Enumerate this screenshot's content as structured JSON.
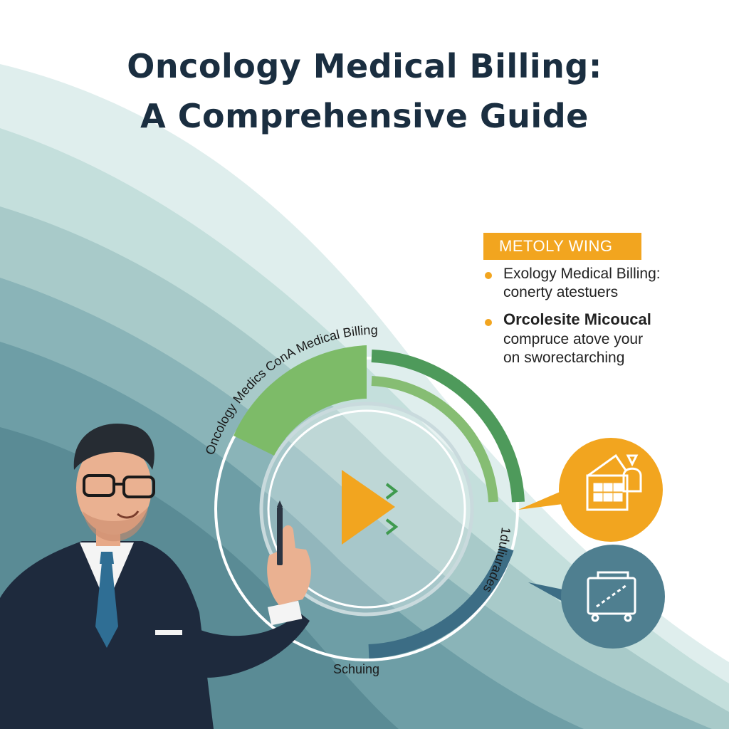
{
  "title": {
    "line1": "Oncology Medical Billing:",
    "line2": "A Comprehensive Guide"
  },
  "badge": {
    "label": "METOLY WING"
  },
  "bullets": [
    {
      "line1": "Exology Medical Billing:",
      "line2": "conerty atestuers"
    },
    {
      "heading": "Orcolesite Micoucal",
      "line1": "compruce atove your",
      "line2": "on sworectarching"
    }
  ],
  "diagram": {
    "arc_top_label": "Oncology Medics ConA Medical Billing",
    "arc_right_label": "1duliurades",
    "arc_bottom_label": "Schuing"
  },
  "icons": [
    "play-icon",
    "chevron-right-icon",
    "calendar-grid-icon",
    "vehicle-icon",
    "pen-icon"
  ],
  "colors": {
    "title": "#1a2e40",
    "accent_orange": "#f2a51f",
    "accent_green_light": "#7dbb68",
    "accent_green_dark": "#4e9a5b",
    "accent_teal_dark": "#3c6d85",
    "icon_circle_teal": "#4f7f90"
  }
}
